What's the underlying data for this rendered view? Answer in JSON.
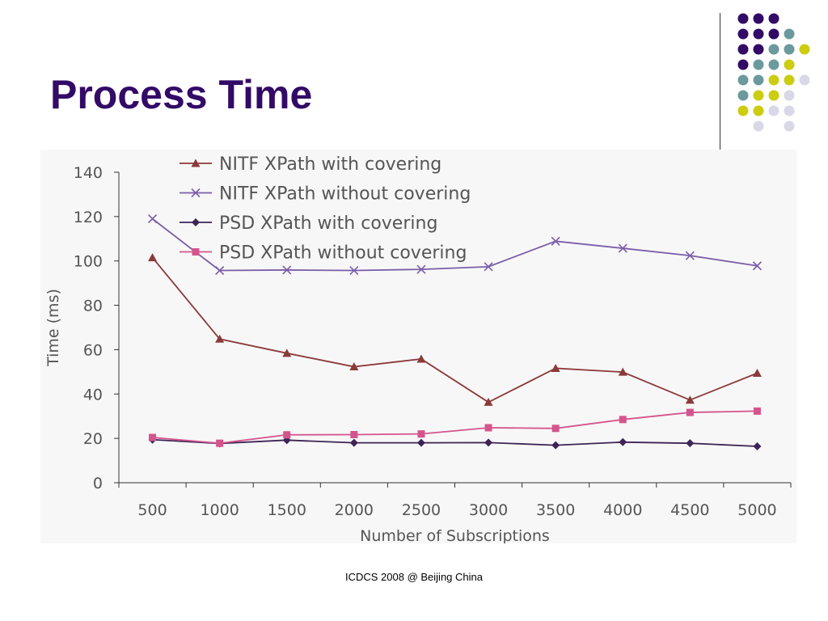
{
  "slide": {
    "title": "Process Time",
    "footer": "ICDCS 2008 @ Beijing China"
  },
  "colors": {
    "title": "#330a66",
    "dot_purple": "#330a66",
    "dot_teal": "#6a9a9e",
    "dot_yellow": "#cccc11",
    "dot_lavender": "#d8d8e6"
  },
  "decoration": {
    "dot_grid": [
      [
        "purple",
        "purple",
        "purple",
        "",
        "",
        ""
      ],
      [
        "purple",
        "purple",
        "purple",
        "teal",
        "",
        ""
      ],
      [
        "purple",
        "purple",
        "teal",
        "teal",
        "yellow",
        ""
      ],
      [
        "purple",
        "teal",
        "teal",
        "yellow",
        "",
        ""
      ],
      [
        "teal",
        "teal",
        "yellow",
        "yellow",
        "lavender",
        ""
      ],
      [
        "teal",
        "yellow",
        "yellow",
        "lavender",
        "",
        ""
      ],
      [
        "yellow",
        "yellow",
        "lavender",
        "lavender",
        "",
        ""
      ],
      [
        "",
        "lavender",
        "",
        "lavender",
        "",
        ""
      ]
    ]
  },
  "chart_data": {
    "type": "line",
    "title": "",
    "xlabel": "Number of Subscriptions",
    "ylabel": "Time (ms)",
    "categories": [
      "500",
      "1000",
      "1500",
      "2000",
      "2500",
      "3000",
      "3500",
      "4000",
      "4500",
      "5000"
    ],
    "ylim": [
      0,
      140
    ],
    "yticks": [
      "0",
      "20",
      "40",
      "60",
      "80",
      "100",
      "120",
      "140"
    ],
    "legend_position": "top-center",
    "series": [
      {
        "name": "NITF XPath with covering",
        "marker": "triangle",
        "color": "#8b3a3a",
        "values": [
          101.5,
          64.8,
          58.4,
          52.3,
          55.8,
          36.3,
          51.6,
          49.9,
          37.3,
          49.4
        ]
      },
      {
        "name": "NITF XPath without covering",
        "marker": "x",
        "color": "#7a5ea8",
        "values": [
          119,
          95.7,
          95.9,
          95.7,
          96.2,
          97.4,
          108.9,
          105.7,
          102.4,
          97.8
        ]
      },
      {
        "name": "PSD XPath with covering",
        "marker": "diamond",
        "color": "#3d2456",
        "values": [
          19.4,
          17.7,
          19.2,
          18.0,
          18.0,
          18.1,
          16.9,
          18.3,
          17.8,
          16.4
        ]
      },
      {
        "name": "PSD XPath without covering",
        "marker": "square",
        "color": "#d4548c",
        "values": [
          20.4,
          17.8,
          21.6,
          21.7,
          22.0,
          24.8,
          24.5,
          28.5,
          31.7,
          32.3
        ]
      }
    ]
  }
}
